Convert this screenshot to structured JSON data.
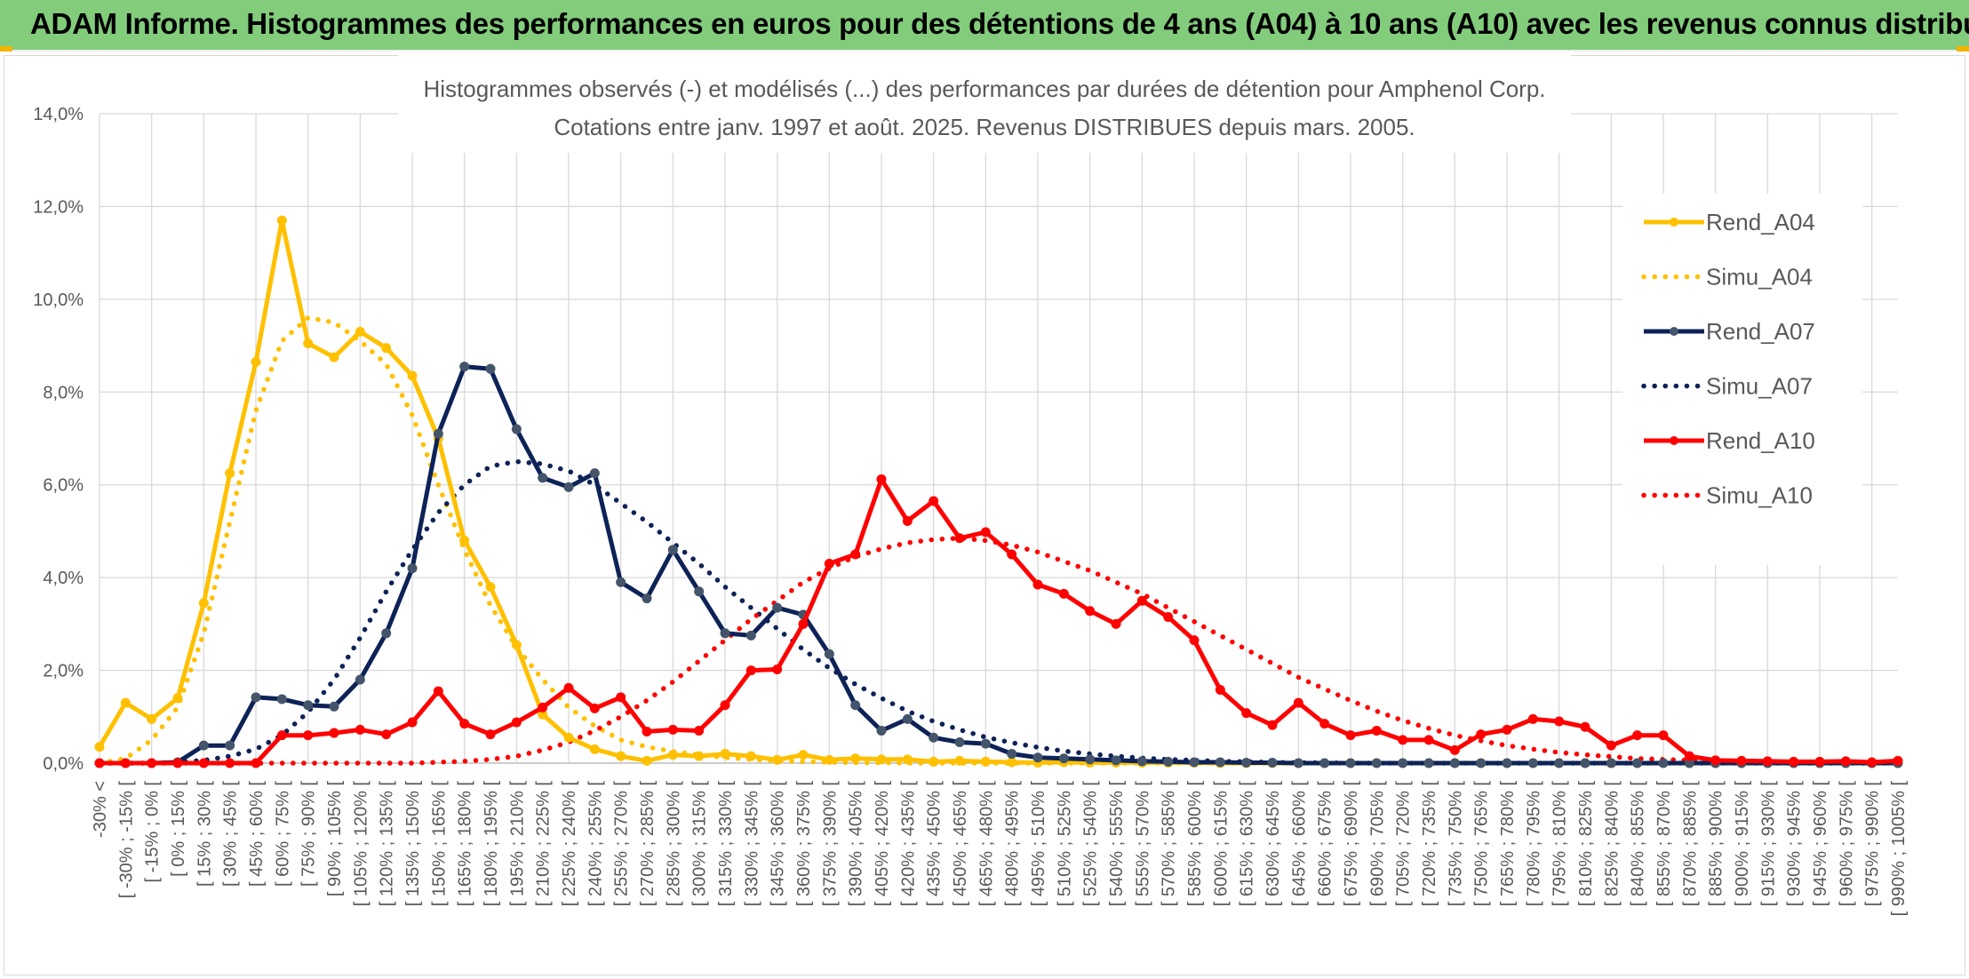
{
  "header": {
    "title": "ADAM Informe. Histogrammes des performances en euros pour des détentions de 4 ans (A04) à 10 ans (A10) avec les revenus connus distribués"
  },
  "colors": {
    "header_bg": "#82cc7c",
    "A04": "#ffc000",
    "A07": "#0d2257",
    "A10": "#ff0000",
    "grid": "#d9d9d9"
  },
  "chart_data": {
    "type": "line",
    "title_line1": "Histogrammes observés (-) et modélisés (...) des performances par durées de détention pour Amphenol Corp.",
    "title_line2": "Cotations entre janv. 1997 et août. 2025. Revenus DISTRIBUES depuis mars. 2005.",
    "ylim": [
      0,
      14
    ],
    "y_ticks": [
      "0,0%",
      "2,0%",
      "4,0%",
      "6,0%",
      "8,0%",
      "10,0%",
      "12,0%",
      "14,0%"
    ],
    "grid": true,
    "legend_position": "right",
    "categories": [
      "-30% <",
      "[ -30% ; -15% [",
      "[ -15% ; 0% [",
      "[ 0% ; 15% [",
      "[ 15% ; 30% [",
      "[ 30% ; 45% [",
      "[ 45% ; 60% [",
      "[ 60% ; 75% [",
      "[ 75% ; 90% [",
      "[ 90% ; 105% [",
      "[ 105% ; 120% [",
      "[ 120% ; 135% [",
      "[ 135% ; 150% [",
      "[ 150% ; 165% [",
      "[ 165% ; 180% [",
      "[ 180% ; 195% [",
      "[ 195% ; 210% [",
      "[ 210% ; 225% [",
      "[ 225% ; 240% [",
      "[ 240% ; 255% [",
      "[ 255% ; 270% [",
      "[ 270% ; 285% [",
      "[ 285% ; 300% [",
      "[ 300% ; 315% [",
      "[ 315% ; 330% [",
      "[ 330% ; 345% [",
      "[ 345% ; 360% [",
      "[ 360% ; 375% [",
      "[ 375% ; 390% [",
      "[ 390% ; 405% [",
      "[ 405% ; 420% [",
      "[ 420% ; 435% [",
      "[ 435% ; 450% [",
      "[ 450% ; 465% [",
      "[ 465% ; 480% [",
      "[ 480% ; 495% [",
      "[ 495% ; 510% [",
      "[ 510% ; 525% [",
      "[ 525% ; 540% [",
      "[ 540% ; 555% [",
      "[ 555% ; 570% [",
      "[ 570% ; 585% [",
      "[ 585% ; 600% [",
      "[ 600% ; 615% [",
      "[ 615% ; 630% [",
      "[ 630% ; 645% [",
      "[ 645% ; 660% [",
      "[ 660% ; 675% [",
      "[ 675% ; 690% [",
      "[ 690% ; 705% [",
      "[ 705% ; 720% [",
      "[ 720% ; 735% [",
      "[ 735% ; 750% [",
      "[ 750% ; 765% [",
      "[ 765% ; 780% [",
      "[ 780% ; 795% [",
      "[ 795% ; 810% [",
      "[ 810% ; 825% [",
      "[ 825% ; 840% [",
      "[ 840% ; 855% [",
      "[ 855% ; 870% [",
      "[ 870% ; 885% [",
      "[ 885% ; 900% [",
      "[ 900% ; 915% [",
      "[ 915% ; 930% [",
      "[ 930% ; 945% [",
      "[ 945% ; 960% [",
      "[ 960% ; 975% [",
      "[ 975% ; 990% [",
      "[ 990% ; 1005% ["
    ],
    "series": [
      {
        "name": "Rend_A04",
        "style": "solid",
        "color": "#ffc000",
        "values": [
          0.35,
          1.3,
          0.95,
          1.4,
          3.45,
          6.25,
          8.65,
          11.7,
          9.05,
          8.75,
          9.3,
          8.95,
          8.35,
          7.0,
          4.8,
          3.8,
          2.55,
          1.05,
          0.55,
          0.3,
          0.15,
          0.05,
          0.18,
          0.15,
          0.2,
          0.15,
          0.07,
          0.18,
          0.07,
          0.1,
          0.08,
          0.08,
          0.03,
          0.05,
          0.03,
          0.02,
          0.01,
          0.02,
          0.01,
          0.01,
          0.01,
          0.01,
          0.01,
          0,
          0,
          0,
          0,
          0,
          0,
          0,
          0,
          0,
          0,
          0,
          0,
          0,
          0,
          0,
          0,
          0,
          0,
          0,
          0,
          0,
          0,
          0,
          0,
          0,
          0,
          0
        ]
      },
      {
        "name": "Simu_A04",
        "style": "dotted",
        "color": "#ffc000",
        "values": [
          0.0,
          0.1,
          0.5,
          1.2,
          2.8,
          5.2,
          7.6,
          9.1,
          9.6,
          9.5,
          9.1,
          8.6,
          7.5,
          6.0,
          4.6,
          3.4,
          2.5,
          1.8,
          1.2,
          0.8,
          0.5,
          0.35,
          0.25,
          0.18,
          0.12,
          0.08,
          0.05,
          0.03,
          0.02,
          0.01,
          0.01,
          0,
          0,
          0,
          0,
          0,
          0,
          0,
          0,
          0,
          0,
          0,
          0,
          0,
          0,
          0,
          0,
          0,
          0,
          0,
          0,
          0,
          0,
          0,
          0,
          0,
          0,
          0,
          0,
          0,
          0,
          0,
          0,
          0,
          0,
          0,
          0,
          0,
          0,
          0
        ]
      },
      {
        "name": "Rend_A07",
        "style": "solid",
        "color": "#0d2257",
        "values": [
          0,
          0,
          0,
          0.02,
          0.38,
          0.38,
          1.42,
          1.38,
          1.25,
          1.22,
          1.8,
          2.8,
          4.2,
          7.1,
          8.55,
          8.5,
          7.2,
          6.15,
          5.95,
          6.25,
          3.9,
          3.55,
          4.6,
          3.7,
          2.8,
          2.75,
          3.35,
          3.2,
          2.35,
          1.25,
          0.7,
          0.95,
          0.55,
          0.45,
          0.42,
          0.2,
          0.12,
          0.1,
          0.08,
          0.06,
          0.04,
          0.03,
          0.02,
          0.02,
          0.01,
          0.01,
          0,
          0,
          0,
          0,
          0,
          0,
          0,
          0,
          0,
          0,
          0,
          0,
          0,
          0,
          0,
          0,
          0,
          0,
          0,
          0,
          0,
          0,
          0,
          0
        ]
      },
      {
        "name": "Simu_A07",
        "style": "dotted",
        "color": "#0d2257",
        "values": [
          0,
          0,
          0,
          0.02,
          0.06,
          0.15,
          0.3,
          0.6,
          1.1,
          1.8,
          2.7,
          3.7,
          4.6,
          5.4,
          6.0,
          6.4,
          6.5,
          6.45,
          6.3,
          6.0,
          5.6,
          5.2,
          4.75,
          4.3,
          3.8,
          3.35,
          2.9,
          2.45,
          2.05,
          1.7,
          1.4,
          1.12,
          0.9,
          0.72,
          0.56,
          0.44,
          0.34,
          0.26,
          0.2,
          0.15,
          0.11,
          0.08,
          0.06,
          0.04,
          0.03,
          0.02,
          0.01,
          0.01,
          0,
          0,
          0,
          0,
          0,
          0,
          0,
          0,
          0,
          0,
          0,
          0,
          0,
          0,
          0,
          0,
          0,
          0,
          0,
          0,
          0,
          0
        ]
      },
      {
        "name": "Rend_A10",
        "style": "solid",
        "color": "#ff0000",
        "values": [
          0,
          0,
          0,
          0,
          0,
          0,
          0,
          0.6,
          0.6,
          0.65,
          0.72,
          0.62,
          0.88,
          1.55,
          0.85,
          0.62,
          0.88,
          1.2,
          1.62,
          1.18,
          1.42,
          0.68,
          0.72,
          0.7,
          1.25,
          2.0,
          2.02,
          3.0,
          4.3,
          4.5,
          6.12,
          5.22,
          5.65,
          4.85,
          4.98,
          4.5,
          3.85,
          3.65,
          3.28,
          3.0,
          3.5,
          3.15,
          2.65,
          1.58,
          1.08,
          0.82,
          1.3,
          0.85,
          0.6,
          0.7,
          0.5,
          0.5,
          0.28,
          0.62,
          0.72,
          0.95,
          0.9,
          0.78,
          0.38,
          0.6,
          0.6,
          0.15,
          0.06,
          0.05,
          0.04,
          0.03,
          0.03,
          0.04,
          0.02,
          0.05
        ]
      },
      {
        "name": "Simu_A10",
        "style": "dotted",
        "color": "#ff0000",
        "values": [
          0,
          0,
          0,
          0,
          0,
          0,
          0,
          0,
          0,
          0,
          0,
          0,
          0,
          0.02,
          0.04,
          0.08,
          0.15,
          0.28,
          0.45,
          0.7,
          1.0,
          1.35,
          1.75,
          2.2,
          2.65,
          3.1,
          3.5,
          3.9,
          4.2,
          4.45,
          4.62,
          4.75,
          4.82,
          4.85,
          4.8,
          4.7,
          4.55,
          4.35,
          4.15,
          3.9,
          3.65,
          3.35,
          3.05,
          2.75,
          2.45,
          2.15,
          1.85,
          1.6,
          1.35,
          1.12,
          0.92,
          0.75,
          0.6,
          0.48,
          0.38,
          0.3,
          0.23,
          0.18,
          0.14,
          0.1,
          0.08,
          0.06,
          0.05,
          0.04,
          0.03,
          0.02,
          0.02,
          0.01,
          0.01,
          0
        ]
      }
    ]
  }
}
